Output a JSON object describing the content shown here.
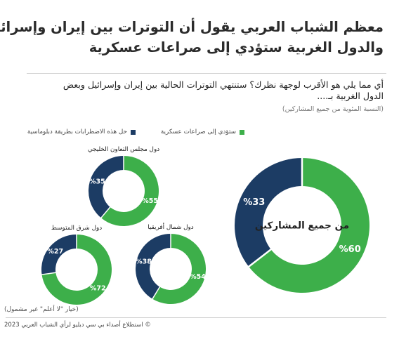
{
  "title": {
    "line1": "معظم الشباب العربي يقول أن التوترات بين إيران وإسرائيل",
    "line2": "والدول الغربية ستؤدي إلى صراعات عسكرية"
  },
  "question": {
    "line1": "أي مما يلي هو الأقرب لوجهة نظرك؟ ستنتهي التوترات الحالية بين إيران وإسرائيل وبعض",
    "line2": "الدول الغربية بـ...."
  },
  "subtitle": "(النسبة المئوية من جميع المشاركين)",
  "footnote": "(خيار \"لا أعلم\" غير مشمول)",
  "source": "© استطلاع أصداء بي سي دبليو لرأي الشباب العربي 2023",
  "colors": {
    "green": "#3daf4a",
    "navy": "#1c3c64"
  },
  "chart_data": {
    "type": "pie",
    "donut": true,
    "legend": [
      {
        "label": "ستؤدي إلى صراعات عسكرية",
        "color": "#3daf4a"
      },
      {
        "label": "حل هذه الاضطرابات بطريقة دبلوماسية",
        "color": "#1c3c64"
      }
    ],
    "charts": [
      {
        "label": "من جميع المشاركين",
        "values": [
          60,
          33
        ],
        "labels": [
          "%60",
          "%33"
        ]
      },
      {
        "label": "دول مجلس التعاون الخليجي",
        "values": [
          55,
          35
        ],
        "labels": [
          "%55",
          "%35"
        ]
      },
      {
        "label": "دول شمال أفريقيا",
        "values": [
          54,
          38
        ],
        "labels": [
          "%54",
          "%38"
        ]
      },
      {
        "label": "دول شرق المتوسط",
        "values": [
          72,
          27
        ],
        "labels": [
          "%72",
          "%27"
        ]
      }
    ]
  }
}
